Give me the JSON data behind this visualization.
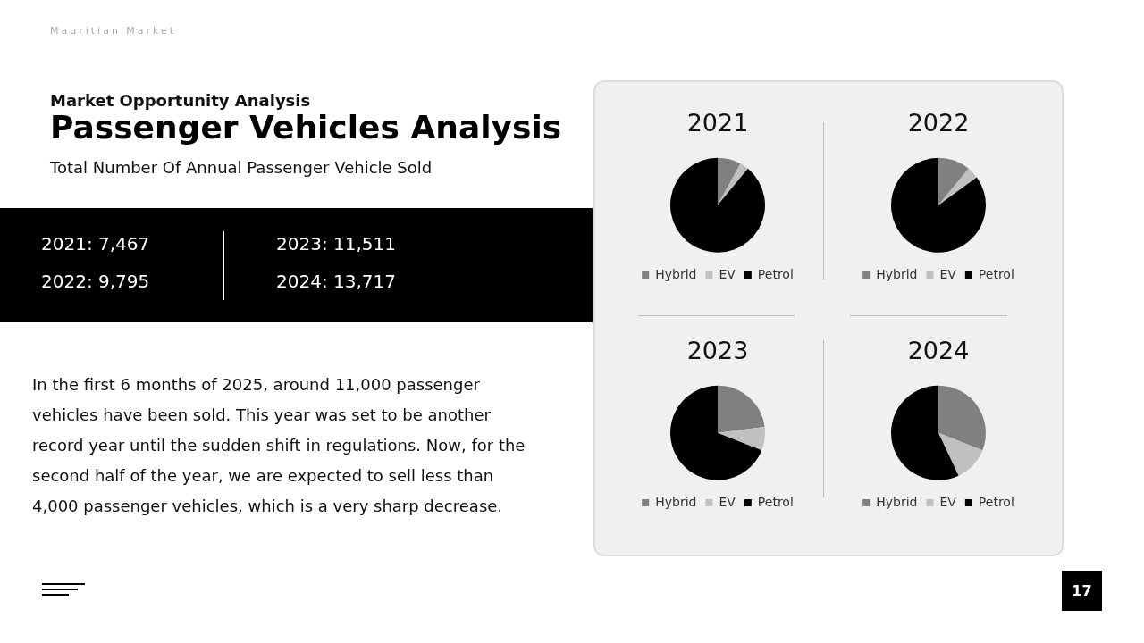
{
  "chart_data": [
    {
      "type": "other",
      "title": "Passenger Vehicles Analysis",
      "subtitle": "Total Number Of Annual Passenger Vehicle Sold",
      "annotations": [
        "Mauritian Market",
        "Market Opportunity Analysis",
        "2021: 7,467",
        "2022: 9,795",
        "2023: 11,511",
        "2024: 13,717",
        "In the first 6 months of 2025, around 11,000 passenger vehicles have been sold. This year was set to be another record year until the sudden shift in regulations. Now, for the second half of the year, we are expected to sell less than 4,000 passenger vehicles, which is a very sharp decrease.",
        "17"
      ]
    },
    {
      "type": "pie",
      "title": "2021",
      "categories": [
        "Hybrid",
        "EV",
        "Petrol"
      ],
      "values": [
        8,
        3,
        89
      ],
      "colors": [
        "#808080",
        "#c0c0c0",
        "#000000"
      ],
      "legend": "bottom"
    },
    {
      "type": "pie",
      "title": "2022",
      "categories": [
        "Hybrid",
        "EV",
        "Petrol"
      ],
      "values": [
        11,
        4,
        85
      ],
      "colors": [
        "#808080",
        "#c0c0c0",
        "#000000"
      ],
      "legend": "bottom"
    },
    {
      "type": "pie",
      "title": "2023",
      "categories": [
        "Hybrid",
        "EV",
        "Petrol"
      ],
      "values": [
        23,
        8,
        69
      ],
      "colors": [
        "#808080",
        "#c0c0c0",
        "#000000"
      ],
      "legend": "bottom"
    },
    {
      "type": "pie",
      "title": "2024",
      "categories": [
        "Hybrid",
        "EV",
        "Petrol"
      ],
      "values": [
        31,
        12,
        57
      ],
      "colors": [
        "#808080",
        "#c0c0c0",
        "#000000"
      ],
      "legend": "bottom"
    }
  ]
}
